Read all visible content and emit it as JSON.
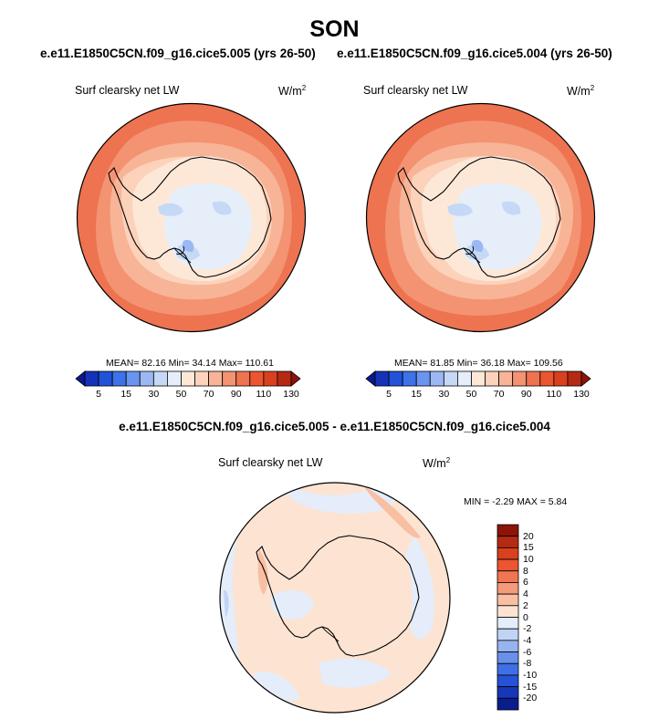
{
  "figure": {
    "season": "SON",
    "case_title_1": "e.e11.E1850C5CN.f09_g16.cice5.005 (yrs 26-50)",
    "case_title_2": "e.e11.E1850C5CN.f09_g16.cice5.004 (yrs 26-50)",
    "diff_title": "e.e11.E1850C5CN.f09_g16.cice5.005 - e.e11.E1850C5CN.f09_g16.cice5.004"
  },
  "panels": [
    {
      "variable": "Surf clearsky net LW",
      "units": "W/m",
      "units_exp": "2",
      "stats": "MEAN=  82.16  Min=  34.14  Max= 110.61"
    },
    {
      "variable": "Surf clearsky net LW",
      "units": "W/m",
      "units_exp": "2",
      "stats": "MEAN=  81.85  Min=  36.18  Max= 109.56"
    }
  ],
  "diff_panel": {
    "variable": "Surf clearsky net LW",
    "units": "W/m",
    "units_exp": "2",
    "stats": "MIN =  -2.29 MAX =   5.84"
  },
  "colorbar_main": {
    "colors": [
      "#0a1a8a",
      "#1532b8",
      "#2152d8",
      "#3d72e8",
      "#6a94ef",
      "#9bb8f3",
      "#c5d8f6",
      "#e6eef9",
      "#fde8d8",
      "#fcd2bb",
      "#f8b497",
      "#f39372",
      "#ef7350",
      "#eb5530",
      "#d8401e",
      "#b52a12",
      "#8c1408"
    ],
    "tick_labels": [
      "5",
      "15",
      "30",
      "50",
      "70",
      "90",
      "110",
      "130"
    ]
  },
  "colorbar_diff": {
    "colors": [
      "#8c1408",
      "#b52a12",
      "#d8401e",
      "#eb5530",
      "#f07552",
      "#f59a7a",
      "#f9bfa3",
      "#fde3d2",
      "#e4edf9",
      "#c0d4f6",
      "#97b4f1",
      "#6a90ec",
      "#3f6fe6",
      "#2552d6",
      "#1637b6",
      "#0b1d8e"
    ],
    "tick_labels": [
      "20",
      "15",
      "10",
      "8",
      "6",
      "4",
      "2",
      "0",
      "-2",
      "-4",
      "-6",
      "-8",
      "-10",
      "-15",
      "-20"
    ]
  },
  "colors": {
    "ocean_outer": "#ee7350",
    "ocean_mid": "#f39372",
    "coastal": "#f8b497",
    "near_coast": "#fcd2bb",
    "ice": "#fde8d8",
    "ice_low": "#e6eef9",
    "ice_lower": "#c5d8f6",
    "ice_lowest": "#9bb8f3",
    "diff_positive": "#fde3d2",
    "diff_positive_strong": "#f9bfa3",
    "diff_negative": "#e4edf9",
    "diff_negative_strong": "#c0d4f6"
  }
}
